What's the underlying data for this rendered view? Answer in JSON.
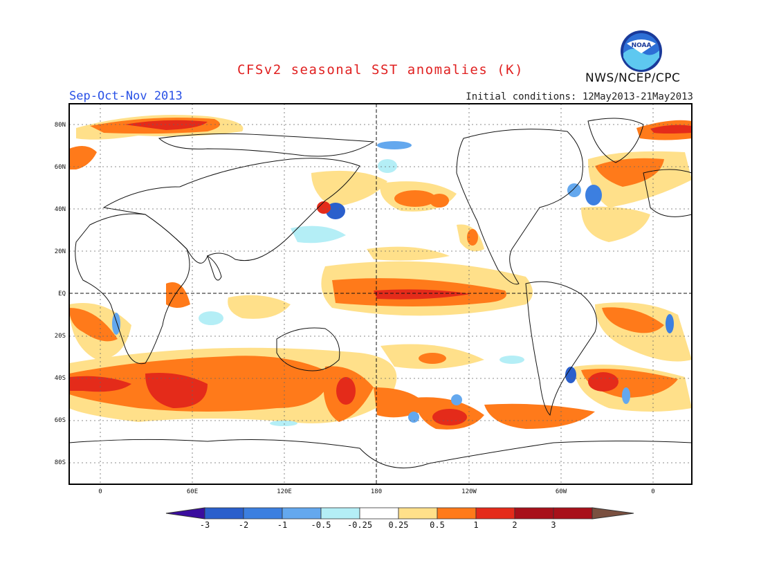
{
  "header": {
    "title": "CFSv2 seasonal SST anomalies (K)",
    "season": "Sep-Oct-Nov 2013",
    "initial_conditions": "Initial conditions: 12May2013-21May2013",
    "agency": "NWS/NCEP/CPC",
    "logo_text": "NOAA"
  },
  "map": {
    "lat_labels": [
      "80N",
      "60N",
      "40N",
      "20N",
      "EQ",
      "20S",
      "40S",
      "60S",
      "80S"
    ],
    "lon_labels": [
      "0",
      "60E",
      "120E",
      "180",
      "120W",
      "60W",
      "0"
    ]
  },
  "colorbar": {
    "labels": [
      "-3",
      "-2",
      "-1",
      "-0.5",
      "-0.25",
      "0.25",
      "0.5",
      "1",
      "2",
      "3"
    ],
    "colors": [
      "#3a0d9e",
      "#2a5fcc",
      "#3c7fe0",
      "#64a8ee",
      "#b4eef6",
      "#ffffff",
      "#ffe08a",
      "#ff7a1a",
      "#e42b1a",
      "#a8101a",
      "#7a5040"
    ]
  }
}
